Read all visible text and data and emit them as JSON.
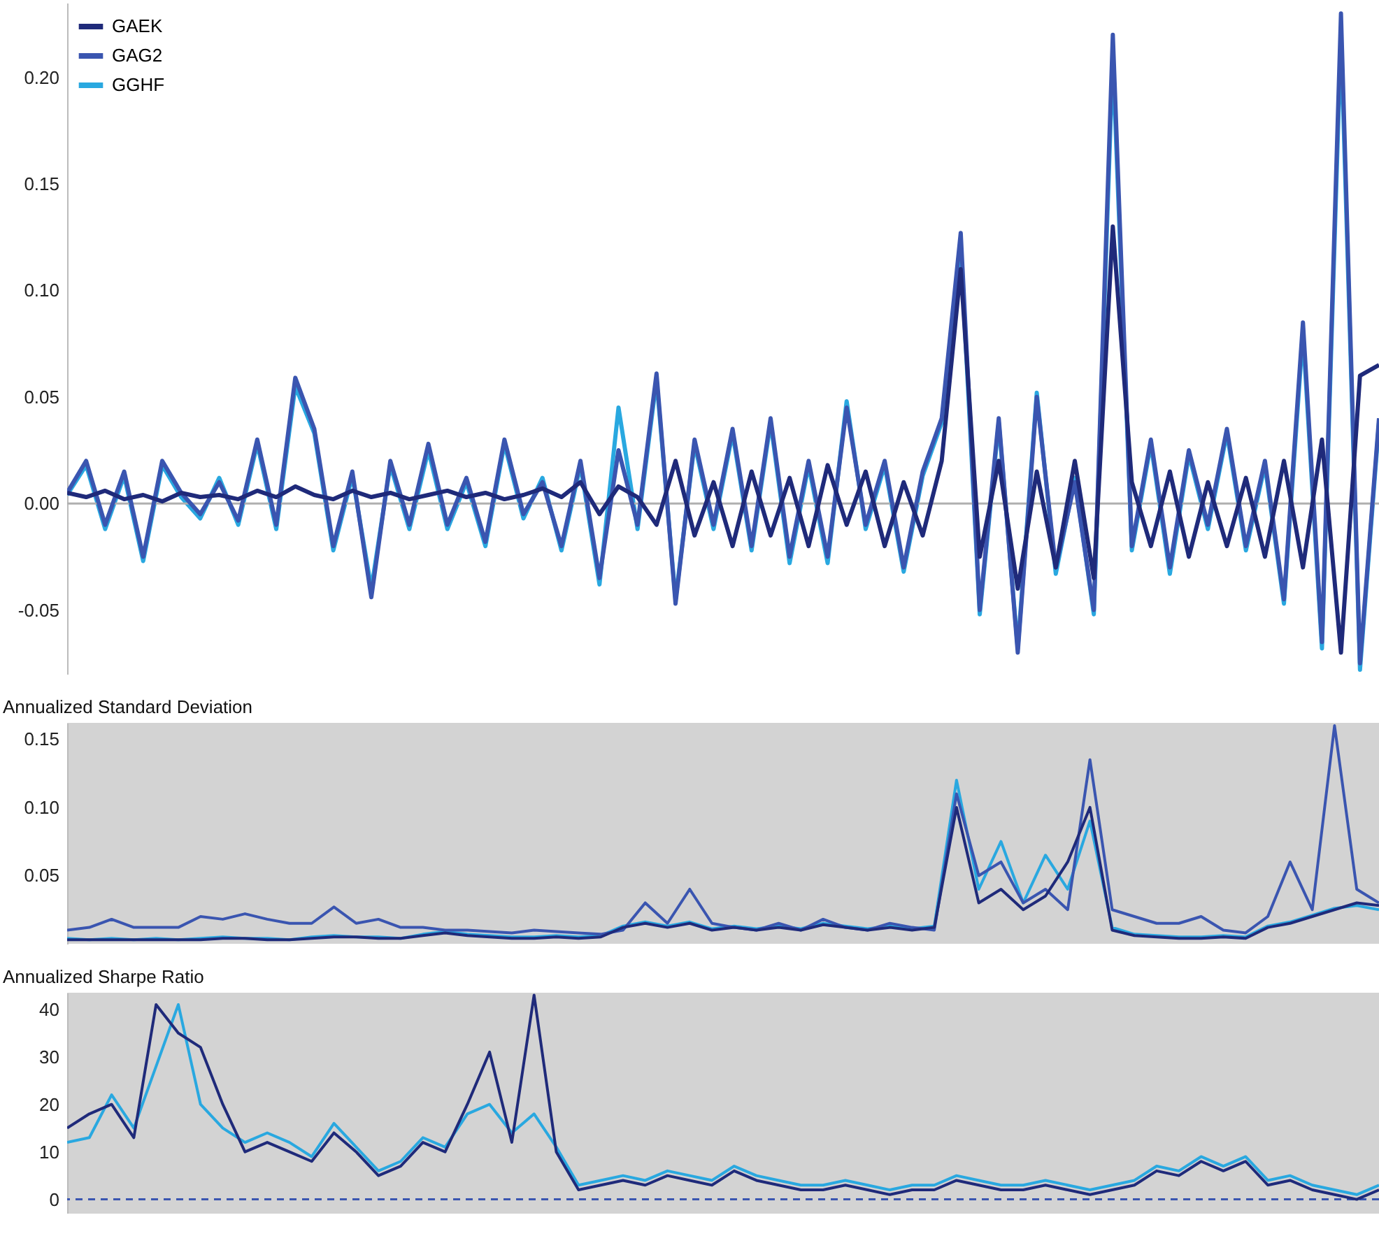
{
  "chart_data": [
    {
      "type": "line",
      "categories": [
        null,
        null,
        null,
        null,
        null,
        null,
        null,
        null,
        null,
        null,
        null,
        null,
        null,
        null,
        null,
        null,
        null,
        null,
        null,
        null,
        null,
        null,
        null,
        null,
        null,
        null,
        null,
        null,
        null,
        null,
        null,
        null,
        null,
        null,
        null,
        null,
        null,
        null,
        null,
        null,
        null,
        null,
        null,
        null,
        null,
        null,
        null,
        null,
        null,
        null,
        null,
        null,
        null,
        null,
        null,
        null,
        null,
        null,
        null,
        null,
        null,
        null,
        null,
        null,
        null,
        null,
        null,
        null,
        null,
        null
      ],
      "ylim": [
        -0.08,
        0.235
      ],
      "yticks": [
        {
          "value": -0.05,
          "label": "-0.05"
        },
        {
          "value": 0,
          "label": "0.00"
        },
        {
          "value": 0.05,
          "label": "0.05"
        },
        {
          "value": 0.1,
          "label": "0.10"
        },
        {
          "value": 0.15,
          "label": "0.15"
        },
        {
          "value": 0.2,
          "label": "0.20"
        }
      ],
      "tick_labels": "y",
      "legend": "top left",
      "ref_lines": [
        {
          "axis": "y",
          "value": 0,
          "color": "#b0b0b0"
        }
      ],
      "series": [
        {
          "name": "GAEK",
          "color": "#1f2a7a",
          "values": [
            0.005,
            0.003,
            0.006,
            0.002,
            0.004,
            0.001,
            0.005,
            0.003,
            0.004,
            0.002,
            0.006,
            0.003,
            0.008,
            0.004,
            0.002,
            0.006,
            0.003,
            0.005,
            0.002,
            0.004,
            0.006,
            0.003,
            0.005,
            0.002,
            0.004,
            0.007,
            0.003,
            0.01,
            -0.005,
            0.008,
            0.003,
            -0.01,
            0.02,
            -0.015,
            0.01,
            -0.02,
            0.015,
            -0.015,
            0.012,
            -0.02,
            0.018,
            -0.01,
            0.015,
            -0.02,
            0.01,
            -0.015,
            0.02,
            0.11,
            -0.025,
            0.02,
            -0.04,
            0.015,
            -0.03,
            0.02,
            -0.035,
            0.13,
            0.01,
            -0.02,
            0.015,
            -0.025,
            0.01,
            -0.02,
            0.012,
            -0.025,
            0.02,
            -0.03,
            0.03,
            -0.07,
            0.06,
            0.065
          ]
        },
        {
          "name": "GAG2",
          "color": "#3a55b0",
          "values": [
            0.005,
            0.02,
            -0.01,
            0.015,
            -0.025,
            0.02,
            0.005,
            -0.005,
            0.01,
            -0.008,
            0.03,
            -0.01,
            0.059,
            0.035,
            -0.02,
            0.015,
            -0.044,
            0.02,
            -0.01,
            0.028,
            -0.01,
            0.012,
            -0.018,
            0.03,
            -0.005,
            0.01,
            -0.02,
            0.02,
            -0.035,
            0.025,
            -0.01,
            0.061,
            -0.047,
            0.03,
            -0.01,
            0.035,
            -0.02,
            0.04,
            -0.025,
            0.02,
            -0.025,
            0.045,
            -0.01,
            0.02,
            -0.03,
            0.015,
            0.04,
            0.127,
            -0.05,
            0.04,
            -0.07,
            0.05,
            -0.03,
            0.01,
            -0.05,
            0.22,
            -0.02,
            0.03,
            -0.03,
            0.025,
            -0.01,
            0.035,
            -0.02,
            0.02,
            -0.045,
            0.085,
            -0.065,
            0.23,
            -0.075,
            0.04
          ]
        },
        {
          "name": "GGHF",
          "color": "#29a8e0",
          "values": [
            0.004,
            0.018,
            -0.012,
            0.013,
            -0.027,
            0.018,
            0.003,
            -0.007,
            0.012,
            -0.01,
            0.028,
            -0.012,
            0.055,
            0.033,
            -0.022,
            0.013,
            -0.04,
            0.018,
            -0.012,
            0.025,
            -0.012,
            0.01,
            -0.02,
            0.028,
            -0.007,
            0.012,
            -0.022,
            0.018,
            -0.038,
            0.045,
            -0.012,
            0.058,
            -0.045,
            0.028,
            -0.012,
            0.033,
            -0.022,
            0.038,
            -0.028,
            0.018,
            -0.028,
            0.048,
            -0.012,
            0.018,
            -0.032,
            0.013,
            0.038,
            0.12,
            -0.052,
            0.038,
            -0.068,
            0.052,
            -0.033,
            0.012,
            -0.052,
            0.21,
            -0.022,
            0.028,
            -0.033,
            0.023,
            -0.012,
            0.033,
            -0.022,
            0.018,
            -0.047,
            0.08,
            -0.068,
            0.22,
            -0.078,
            0.038
          ]
        }
      ]
    },
    {
      "type": "line",
      "title": "Annualized Standard Deviation",
      "categories": [
        null,
        null,
        null,
        null,
        null,
        null,
        null,
        null,
        null,
        null,
        null,
        null,
        null,
        null,
        null,
        null,
        null,
        null,
        null,
        null,
        null,
        null,
        null,
        null,
        null,
        null,
        null,
        null,
        null,
        null,
        null,
        null,
        null,
        null,
        null,
        null,
        null,
        null,
        null,
        null,
        null,
        null,
        null,
        null,
        null,
        null,
        null,
        null,
        null,
        null,
        null,
        null,
        null,
        null,
        null,
        null,
        null,
        null,
        null,
        null
      ],
      "ylim": [
        0,
        0.162
      ],
      "yticks": [
        {
          "value": 0.05,
          "label": "0.05"
        },
        {
          "value": 0.1,
          "label": "0.10"
        },
        {
          "value": 0.15,
          "label": "0.15"
        }
      ],
      "tick_labels": "y",
      "series": [
        {
          "color": "#1f2a7a",
          "values": [
            0.003,
            0.003,
            0.003,
            0.003,
            0.003,
            0.003,
            0.003,
            0.004,
            0.004,
            0.003,
            0.003,
            0.004,
            0.005,
            0.005,
            0.004,
            0.004,
            0.006,
            0.008,
            0.006,
            0.005,
            0.004,
            0.004,
            0.005,
            0.004,
            0.005,
            0.012,
            0.015,
            0.012,
            0.015,
            0.01,
            0.012,
            0.01,
            0.012,
            0.01,
            0.014,
            0.012,
            0.01,
            0.012,
            0.01,
            0.012,
            0.1,
            0.03,
            0.04,
            0.025,
            0.035,
            0.06,
            0.1,
            0.01,
            0.006,
            0.005,
            0.004,
            0.004,
            0.005,
            0.004,
            0.012,
            0.015,
            0.02,
            0.025,
            0.03,
            0.028
          ]
        },
        {
          "color": "#3a55b0",
          "values": [
            0.01,
            0.012,
            0.018,
            0.012,
            0.012,
            0.012,
            0.02,
            0.018,
            0.022,
            0.018,
            0.015,
            0.015,
            0.027,
            0.015,
            0.018,
            0.012,
            0.012,
            0.01,
            0.01,
            0.009,
            0.008,
            0.01,
            0.009,
            0.008,
            0.007,
            0.01,
            0.03,
            0.015,
            0.04,
            0.015,
            0.012,
            0.01,
            0.015,
            0.01,
            0.018,
            0.012,
            0.01,
            0.015,
            0.012,
            0.01,
            0.11,
            0.05,
            0.06,
            0.03,
            0.04,
            0.025,
            0.135,
            0.025,
            0.02,
            0.015,
            0.015,
            0.02,
            0.01,
            0.008,
            0.02,
            0.06,
            0.025,
            0.16,
            0.04,
            0.03
          ]
        },
        {
          "color": "#29a8e0",
          "values": [
            0.004,
            0.003,
            0.004,
            0.003,
            0.004,
            0.003,
            0.004,
            0.005,
            0.004,
            0.004,
            0.003,
            0.005,
            0.006,
            0.005,
            0.005,
            0.004,
            0.007,
            0.009,
            0.007,
            0.006,
            0.005,
            0.005,
            0.006,
            0.005,
            0.006,
            0.013,
            0.016,
            0.013,
            0.016,
            0.011,
            0.013,
            0.011,
            0.013,
            0.011,
            0.015,
            0.013,
            0.011,
            0.013,
            0.011,
            0.013,
            0.12,
            0.04,
            0.075,
            0.03,
            0.065,
            0.04,
            0.09,
            0.012,
            0.007,
            0.006,
            0.005,
            0.005,
            0.006,
            0.005,
            0.013,
            0.016,
            0.021,
            0.026,
            0.028,
            0.025
          ]
        }
      ]
    },
    {
      "type": "line",
      "title": "Annualized Sharpe Ratio",
      "categories": [
        null,
        null,
        null,
        null,
        null,
        null,
        null,
        null,
        null,
        null,
        null,
        null,
        null,
        null,
        null,
        null,
        null,
        null,
        null,
        null,
        null,
        null,
        null,
        null,
        null,
        null,
        null,
        null,
        null,
        null,
        null,
        null,
        null,
        null,
        null,
        null,
        null,
        null,
        null,
        null,
        null,
        null,
        null,
        null,
        null,
        null,
        null,
        null,
        null,
        null,
        null,
        null,
        null,
        null,
        null,
        null,
        null,
        null,
        null,
        null
      ],
      "ylim": [
        -3,
        43.5
      ],
      "yticks": [
        0,
        10,
        20,
        30,
        40
      ],
      "tick_labels": "y",
      "ref_lines": [
        {
          "axis": "y",
          "value": 0,
          "color": "#3a55b0",
          "line_style": "dashed"
        }
      ],
      "series": [
        {
          "color": "#1f2a7a",
          "values": [
            15,
            18,
            20,
            13,
            41,
            35,
            32,
            20,
            10,
            12,
            10,
            8,
            14,
            10,
            5,
            7,
            12,
            10,
            20,
            31,
            12,
            43,
            10,
            2,
            3,
            4,
            3,
            5,
            4,
            3,
            6,
            4,
            3,
            2,
            2,
            3,
            2,
            1,
            2,
            2,
            4,
            3,
            2,
            2,
            3,
            2,
            1,
            2,
            3,
            6,
            5,
            8,
            6,
            8,
            3,
            4,
            2,
            1,
            0,
            2
          ]
        },
        {
          "color": "#29a8e0",
          "values": [
            12,
            13,
            22,
            15,
            28,
            41,
            20,
            15,
            12,
            14,
            12,
            9,
            16,
            11,
            6,
            8,
            13,
            11,
            18,
            20,
            14,
            18,
            11,
            3,
            4,
            5,
            4,
            6,
            5,
            4,
            7,
            5,
            4,
            3,
            3,
            4,
            3,
            2,
            3,
            3,
            5,
            4,
            3,
            3,
            4,
            3,
            2,
            3,
            4,
            7,
            6,
            9,
            7,
            9,
            4,
            5,
            3,
            2,
            1,
            3
          ]
        }
      ]
    }
  ]
}
